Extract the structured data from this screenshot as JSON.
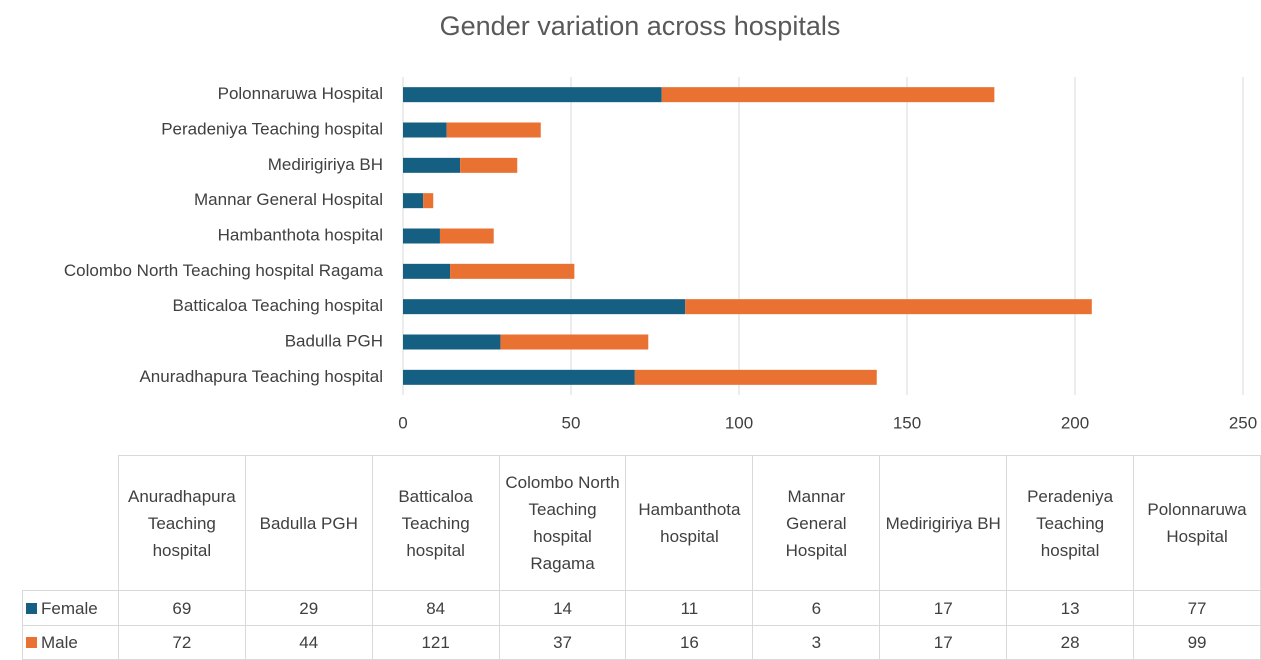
{
  "chart_data": {
    "type": "bar",
    "orientation": "horizontal",
    "stacked": true,
    "title": "Gender variation across hospitals",
    "categories": [
      "Anuradhapura Teaching hospital",
      "Badulla PGH",
      "Batticaloa Teaching hospital",
      "Colombo North Teaching hospital Ragama",
      "Hambanthota hospital",
      "Mannar General Hospital",
      "Medirigiriya BH",
      "Peradeniya Teaching hospital",
      "Polonnaruwa Hospital"
    ],
    "series": [
      {
        "name": "Female",
        "color": "#156082",
        "values": [
          69,
          29,
          84,
          14,
          11,
          6,
          17,
          13,
          77
        ]
      },
      {
        "name": "Male",
        "color": "#e97132",
        "values": [
          72,
          44,
          121,
          37,
          16,
          3,
          17,
          28,
          99
        ]
      }
    ],
    "xlim": [
      0,
      250
    ],
    "xticks": [
      0,
      50,
      100,
      150,
      200,
      250
    ],
    "grid": true,
    "data_table": true
  }
}
